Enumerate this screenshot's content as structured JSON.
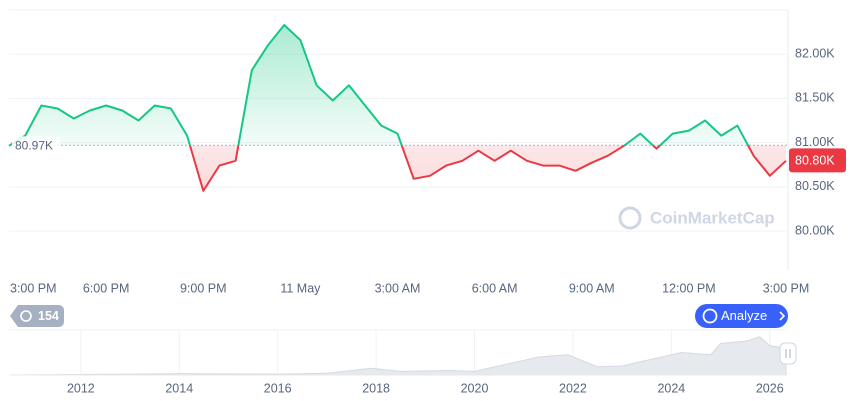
{
  "chart_data": [
    {
      "type": "line",
      "categories": [
        "3:00 PM",
        null,
        null,
        null,
        null,
        null,
        "6:00 PM",
        null,
        null,
        null,
        null,
        null,
        "9:00 PM",
        null,
        null,
        null,
        null,
        null,
        "11 May",
        null,
        null,
        null,
        null,
        null,
        "3:00 AM",
        null,
        null,
        null,
        null,
        null,
        "6:00 AM",
        null,
        null,
        null,
        null,
        null,
        "9:00 AM",
        null,
        null,
        null,
        null,
        null,
        "12:00 PM",
        null,
        null,
        null,
        null,
        null,
        "3:00 PM"
      ],
      "values": [
        80966,
        81080,
        81420,
        81386,
        81273,
        81364,
        81420,
        81364,
        81250,
        81420,
        81386,
        81080,
        80455,
        80740,
        80795,
        81818,
        82102,
        82330,
        82160,
        81648,
        81477,
        81648,
        81420,
        81193,
        81102,
        80591,
        80625,
        80740,
        80795,
        80909,
        80795,
        80909,
        80795,
        80740,
        80740,
        80682,
        80773,
        80852,
        80966,
        81102,
        80932,
        81102,
        81136,
        81250,
        81080,
        81193,
        80852,
        80625,
        80795
      ],
      "ylim": [
        79560,
        82500
      ],
      "yticks": [
        {
          "value": 80000,
          "label": "80.00K"
        },
        {
          "value": 80500,
          "label": "80.50K"
        },
        {
          "value": 81000,
          "label": "81.00K"
        },
        {
          "value": 81500,
          "label": "81.50K"
        },
        {
          "value": 82000,
          "label": "82.00K"
        }
      ],
      "baseline": {
        "value": 80970,
        "label": "80.97K"
      },
      "last": {
        "value": 80800,
        "label": "80.80K"
      },
      "color_up": "#16c784",
      "color_down": "#ea3943",
      "grid": true
    },
    {
      "type": "area",
      "x": [
        2010.54,
        2013,
        2014,
        2016,
        2017,
        2017.9,
        2018.5,
        2019.5,
        2020,
        2021.3,
        2021.9,
        2022.5,
        2023,
        2024.2,
        2024.8,
        2025.0,
        2025.5,
        2025.8,
        2026.0,
        2026.33
      ],
      "values": [
        0,
        2,
        3,
        2,
        4,
        15,
        8,
        10,
        8,
        40,
        45,
        18,
        20,
        50,
        45,
        70,
        75,
        85,
        65,
        60
      ],
      "xlim": [
        2010.54,
        2026.33
      ],
      "ylim": [
        0,
        100
      ],
      "xticks": [
        2012,
        2014,
        2016,
        2018,
        2020,
        2022,
        2024,
        2026
      ],
      "color": "#e6e9ee",
      "grid": true
    }
  ],
  "ui": {
    "badge": "154",
    "button": "Analyze",
    "watermark": "CoinMarketCap"
  }
}
